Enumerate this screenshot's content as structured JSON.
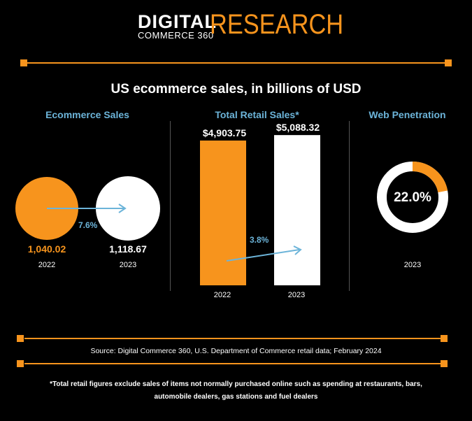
{
  "header": {
    "logo_digital": "DIGITAL",
    "logo_commerce": "COMMERCE 360",
    "logo_research": "RESEARCH"
  },
  "title": "US ecommerce sales, in billions of USD",
  "sections": {
    "ecommerce": "Ecommerce Sales",
    "retail": "Total Retail Sales*",
    "web": "Web Penetration"
  },
  "colors": {
    "accent": "#f7941d",
    "label_blue": "#6cb4d9",
    "white": "#ffffff",
    "ring_bg": "#ffffff"
  },
  "chart_data": [
    {
      "type": "bubble",
      "title": "Ecommerce Sales",
      "categories": [
        "2022",
        "2023"
      ],
      "values": [
        1040.02,
        1118.67
      ],
      "value_labels": [
        "1,040.02",
        "1,118.67"
      ],
      "growth_label": "7.6%"
    },
    {
      "type": "bar",
      "title": "Total Retail Sales*",
      "categories": [
        "2022",
        "2023"
      ],
      "values": [
        4903.75,
        5088.32
      ],
      "value_labels": [
        "$4,903.75",
        "$5,088.32"
      ],
      "growth_label": "3.8%",
      "ylim": [
        0,
        5400
      ]
    },
    {
      "type": "pie",
      "title": "Web Penetration",
      "categories": [
        "2023"
      ],
      "values": [
        22.0
      ],
      "value_label": "22.0%"
    }
  ],
  "source": "Source: Digital Commerce 360, U.S. Department of Commerce retail data; February 2024",
  "footnote_line1": "*Total retail figures exclude sales of items not normally purchased online such as spending at restaurants, bars,",
  "footnote_line2": "automobile dealers, gas stations and fuel dealers"
}
